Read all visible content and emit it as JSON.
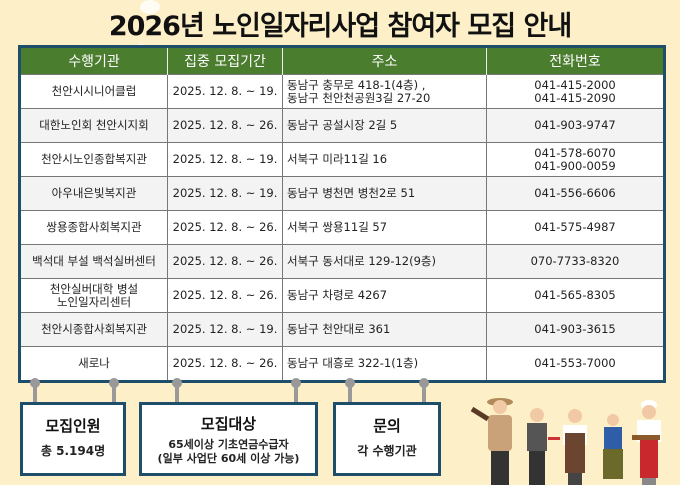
{
  "title": "2026년 노인일자리사업 참여자 모집 안내",
  "table": {
    "headers": [
      "수행기관",
      "집중 모집기간",
      "주소",
      "전화번호"
    ],
    "rows": [
      {
        "org": "천안시시니어클럽",
        "period": "2025. 12. 8. ~ 19.",
        "addr": [
          "동남구 충무로 418-1(4층) ,",
          "동남구 천안천공원3길 27-20"
        ],
        "phone": [
          "041-415-2000",
          "041-415-2090"
        ]
      },
      {
        "org": "대한노인회 천안시지회",
        "period": "2025. 12. 8. ~ 26.",
        "addr": [
          "동남구 공설시장 2길 5"
        ],
        "phone": [
          "041-903-9747"
        ]
      },
      {
        "org": "천안시노인종합복지관",
        "period": "2025. 12. 8. ~ 19.",
        "addr": [
          "서북구 미라11길 16"
        ],
        "phone": [
          "041-578-6070",
          "041-900-0059"
        ]
      },
      {
        "org": "아우내은빛복지관",
        "period": "2025. 12. 8. ~ 19.",
        "addr": [
          "동남구 병천면 병천2로 51"
        ],
        "phone": [
          "041-556-6606"
        ]
      },
      {
        "org": "쌍용종합사회복지관",
        "period": "2025. 12. 8. ~ 26.",
        "addr": [
          "서북구 쌍용11길 57"
        ],
        "phone": [
          "041-575-4987"
        ]
      },
      {
        "org": "백석대 부설 백석실버센터",
        "period": "2025. 12. 8. ~ 26.",
        "addr": [
          "서북구 동서대로 129-12(9층)"
        ],
        "phone": [
          "070-7733-8320"
        ]
      },
      {
        "org": "천안실버대학 병설\n노인일자리센터",
        "period": "2025. 12. 8. ~ 26.",
        "addr": [
          "동남구 차령로 4267"
        ],
        "phone": [
          "041-565-8305"
        ]
      },
      {
        "org": "천안시종합사회복지관",
        "period": "2025. 12. 8. ~ 19.",
        "addr": [
          "동남구 천안대로 361"
        ],
        "phone": [
          "041-903-3615"
        ]
      },
      {
        "org": "새로나",
        "period": "2025. 12. 8. ~ 26.",
        "addr": [
          "동남구 대흥로 322-1(1층)"
        ],
        "phone": [
          "041-553-7000"
        ]
      }
    ]
  },
  "info": [
    {
      "heading": "모집인원",
      "value": "총 5.194명"
    },
    {
      "heading": "모집대상",
      "value": "65세이상 기초연금수급자\n(일부 사업단 60세 이상 가능)"
    },
    {
      "heading": "문의",
      "value": "각 수행기관"
    }
  ],
  "colors": {
    "header_green": "#4b7d2f",
    "border_navy": "#1f4e6b",
    "background": "#fdf0c8"
  }
}
